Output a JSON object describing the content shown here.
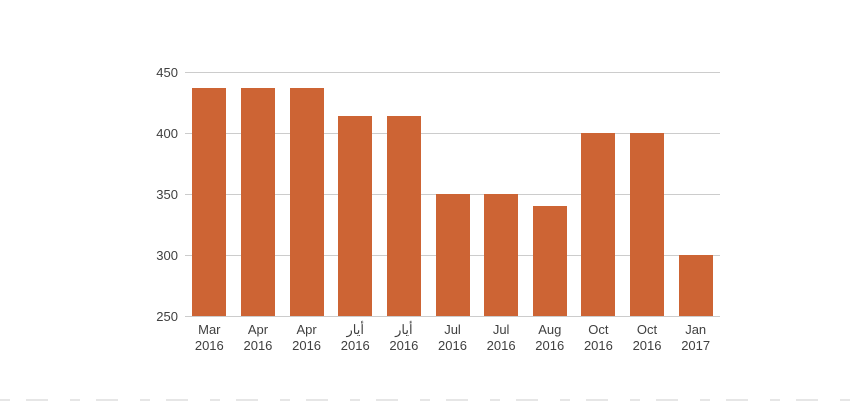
{
  "chart_data": {
    "type": "bar",
    "title": "",
    "xlabel": "",
    "ylabel": "",
    "categories": [
      {
        "month": "Mar",
        "year": "2016"
      },
      {
        "month": "Apr",
        "year": "2016"
      },
      {
        "month": "Apr",
        "year": "2016"
      },
      {
        "month": "أيار",
        "year": "2016"
      },
      {
        "month": "أيار",
        "year": "2016"
      },
      {
        "month": "Jul",
        "year": "2016"
      },
      {
        "month": "Jul",
        "year": "2016"
      },
      {
        "month": "Aug",
        "year": "2016"
      },
      {
        "month": "Oct",
        "year": "2016"
      },
      {
        "month": "Oct",
        "year": "2016"
      },
      {
        "month": "Jan",
        "year": "2017"
      }
    ],
    "values": [
      437,
      437,
      437,
      414,
      414,
      350,
      350,
      340,
      400,
      400,
      300
    ],
    "ylim": [
      250,
      450
    ],
    "yticks": [
      250,
      300,
      350,
      400,
      450
    ],
    "grid": true,
    "legend": "none",
    "colors": {
      "bar": "#cd6434",
      "gridline": "#cccccc",
      "axis_text": "#404040",
      "background": "#ffffff"
    }
  }
}
